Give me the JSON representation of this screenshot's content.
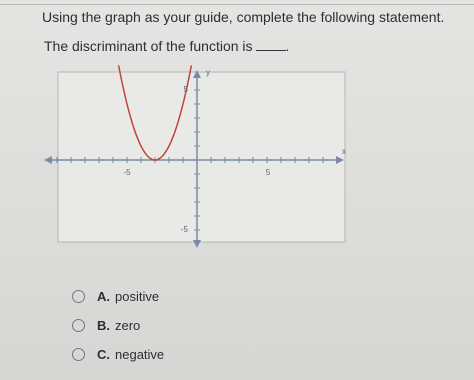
{
  "question": "Using the graph as your guide, complete the following statement.",
  "statement": "The discriminant of the function is",
  "graph": {
    "y_axis_label": "y",
    "x_axis_label": "x",
    "x_tick_labels": [
      "-5",
      "5"
    ],
    "y_tick_labels": [
      "5",
      "-5"
    ]
  },
  "options": [
    {
      "letter": "A.",
      "text": "positive"
    },
    {
      "letter": "B.",
      "text": "zero"
    },
    {
      "letter": "C.",
      "text": "negative"
    }
  ]
}
